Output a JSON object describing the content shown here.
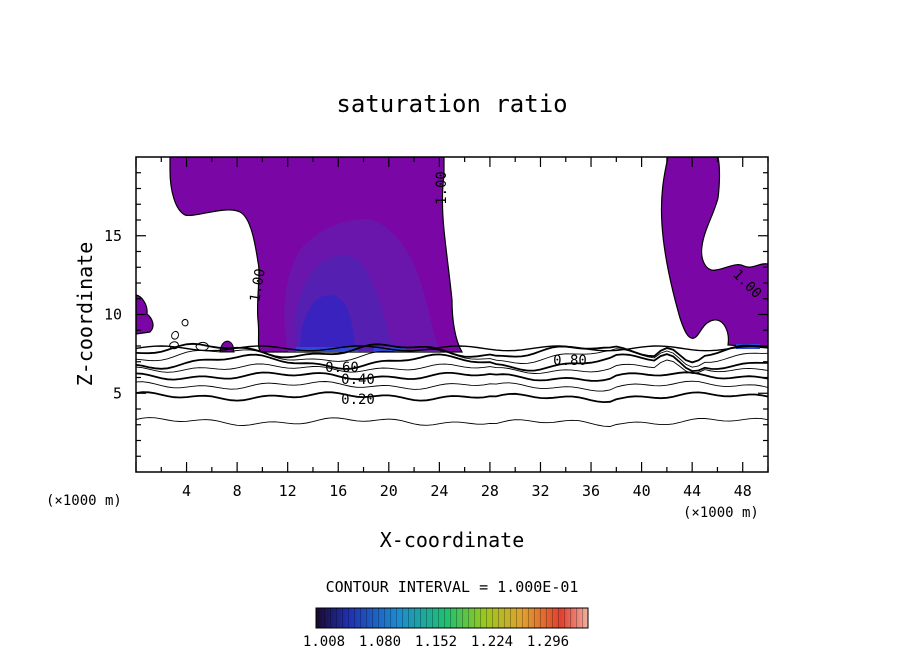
{
  "chart_data": {
    "type": "contour",
    "title": "saturation ratio",
    "xlabel": "X-coordinate",
    "ylabel": "Z-coordinate",
    "x_unit": "(×1000 m)",
    "z_unit": "(×1000 m)",
    "xlim": [
      0,
      50
    ],
    "ylim": [
      0,
      20
    ],
    "x_ticks": [
      "4",
      "8",
      "12",
      "16",
      "20",
      "24",
      "28",
      "32",
      "36",
      "40",
      "44",
      "48"
    ],
    "y_ticks": [
      "5",
      "10",
      "15"
    ],
    "contour_interval_text": "CONTOUR INTERVAL = 1.000E-01",
    "contour_labels": [
      "1.00",
      "1.00",
      "1.00",
      "0.80",
      "0.60",
      "0.40",
      "0.20"
    ],
    "contour_levels_z": [
      {
        "level": 0.1,
        "z": 3.2
      },
      {
        "level": 0.2,
        "z": 4.8
      },
      {
        "level": 0.3,
        "z": 5.5
      },
      {
        "level": 0.4,
        "z": 6.1
      },
      {
        "level": 0.5,
        "z": 6.6
      },
      {
        "level": 0.6,
        "z": 7.0
      },
      {
        "level": 0.7,
        "z": 7.4
      },
      {
        "level": 0.8,
        "z": 7.7
      }
    ],
    "colorbar": {
      "ticks": [
        "1.008",
        "1.080",
        "1.152",
        "1.224",
        "1.296"
      ],
      "range": [
        1.0,
        1.33
      ]
    },
    "supersaturated_regions": [
      {
        "name": "central",
        "x_range": [
          3,
          26
        ],
        "z_range": [
          7.6,
          20
        ]
      },
      {
        "name": "right",
        "x_range": [
          41,
          50
        ],
        "z_range": [
          7.6,
          20
        ]
      },
      {
        "name": "left-edge",
        "x_range": [
          0,
          1.5
        ],
        "z_range": [
          8,
          11
        ]
      }
    ],
    "colors": {
      "fill_base": "#7b06a6",
      "fill_mid": "#6d17b0",
      "fill_core": "#4b1eb5",
      "fill_blue": "#2a33d6",
      "outline": "#000000"
    }
  }
}
